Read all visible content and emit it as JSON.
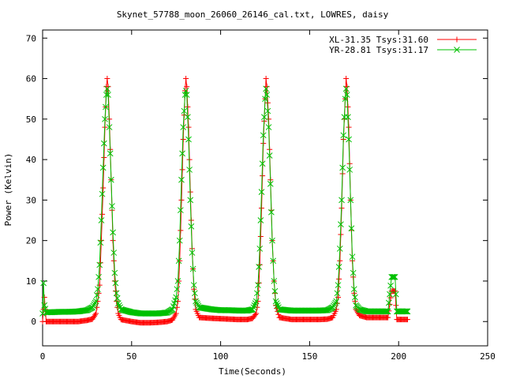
{
  "chart_data": {
    "type": "scatter",
    "title": "Skynet_57788_moon_26060_26146_cal.txt, LOWRES, daisy",
    "xlabel": "Time(Seconds)",
    "ylabel": "Power (Kelvin)",
    "xlim": [
      0,
      250
    ],
    "ylim": [
      -6,
      72
    ],
    "x_ticks": [
      "0",
      "50",
      "100",
      "150",
      "200",
      "250"
    ],
    "y_ticks": [
      "0",
      "10",
      "20",
      "30",
      "40",
      "50",
      "60",
      "70"
    ],
    "grid": false,
    "legend_position": "top-right",
    "series": [
      {
        "name": "XL-31.35 Tsys:31.60",
        "color": "#ff0000",
        "marker": "plus",
        "points": [
          [
            0,
            0
          ],
          [
            1,
            6
          ],
          [
            2,
            0
          ],
          [
            5,
            0
          ],
          [
            10,
            0
          ],
          [
            15,
            0
          ],
          [
            20,
            0
          ],
          [
            25,
            0.3
          ],
          [
            28,
            0.6
          ],
          [
            30,
            2
          ],
          [
            31,
            5
          ],
          [
            32,
            9
          ],
          [
            33,
            20
          ],
          [
            34,
            33
          ],
          [
            35,
            48
          ],
          [
            35.8,
            58
          ],
          [
            36.3,
            60
          ],
          [
            36.8,
            58
          ],
          [
            37.5,
            50
          ],
          [
            38.5,
            35
          ],
          [
            39.5,
            20
          ],
          [
            40.5,
            10
          ],
          [
            41.5,
            5
          ],
          [
            42.5,
            2
          ],
          [
            44,
            0.5
          ],
          [
            50,
            0
          ],
          [
            55,
            -0.3
          ],
          [
            60,
            -0.3
          ],
          [
            65,
            -0.2
          ],
          [
            70,
            0
          ],
          [
            73,
            0.4
          ],
          [
            75,
            2
          ],
          [
            76,
            5
          ],
          [
            77,
            15
          ],
          [
            78,
            30
          ],
          [
            79,
            45
          ],
          [
            80,
            57
          ],
          [
            80.5,
            60
          ],
          [
            81,
            58
          ],
          [
            82,
            48
          ],
          [
            83,
            32
          ],
          [
            84,
            18
          ],
          [
            85,
            8
          ],
          [
            86,
            3
          ],
          [
            88,
            1
          ],
          [
            95,
            0.8
          ],
          [
            100,
            0.7
          ],
          [
            105,
            0.6
          ],
          [
            110,
            0.5
          ],
          [
            115,
            0.5
          ],
          [
            118,
            0.8
          ],
          [
            120,
            2
          ],
          [
            121,
            5
          ],
          [
            122,
            14
          ],
          [
            123,
            28
          ],
          [
            124,
            44
          ],
          [
            125,
            55
          ],
          [
            125.5,
            60
          ],
          [
            126,
            58
          ],
          [
            127,
            50
          ],
          [
            128,
            35
          ],
          [
            129,
            20
          ],
          [
            130,
            10
          ],
          [
            131,
            4
          ],
          [
            133,
            1
          ],
          [
            140,
            0.5
          ],
          [
            145,
            0.5
          ],
          [
            150,
            0.5
          ],
          [
            155,
            0.5
          ],
          [
            160,
            0.6
          ],
          [
            163,
            1
          ],
          [
            165,
            3
          ],
          [
            166,
            6
          ],
          [
            167,
            15
          ],
          [
            168,
            28
          ],
          [
            169,
            45
          ],
          [
            170,
            55
          ],
          [
            170.5,
            60
          ],
          [
            171,
            58
          ],
          [
            172,
            48
          ],
          [
            173,
            30
          ],
          [
            174,
            15
          ],
          [
            175,
            7
          ],
          [
            176,
            3
          ],
          [
            178,
            1.5
          ],
          [
            182,
            1
          ],
          [
            188,
            1
          ],
          [
            194,
            1
          ],
          [
            196,
            7.5
          ],
          [
            197,
            7.5
          ],
          [
            198,
            7.5
          ],
          [
            199,
            0.5
          ],
          [
            202,
            0.5
          ],
          [
            205,
            0.5
          ]
        ]
      },
      {
        "name": "YR-28.81 Tsys:31.17",
        "color": "#00c000",
        "marker": "cross",
        "points": [
          [
            0,
            2
          ],
          [
            0.5,
            9.5
          ],
          [
            1,
            4
          ],
          [
            2,
            2.3
          ],
          [
            5,
            2.3
          ],
          [
            10,
            2.4
          ],
          [
            15,
            2.4
          ],
          [
            20,
            2.5
          ],
          [
            25,
            2.8
          ],
          [
            28,
            3.5
          ],
          [
            30,
            5
          ],
          [
            31,
            8
          ],
          [
            32,
            14
          ],
          [
            33,
            25
          ],
          [
            34,
            38
          ],
          [
            35,
            50
          ],
          [
            35.8,
            56
          ],
          [
            36.3,
            57.5
          ],
          [
            36.8,
            56
          ],
          [
            37.5,
            48
          ],
          [
            38.5,
            35
          ],
          [
            39.5,
            22
          ],
          [
            40.5,
            12
          ],
          [
            41.5,
            7
          ],
          [
            42.5,
            4.5
          ],
          [
            44,
            3
          ],
          [
            50,
            2.3
          ],
          [
            55,
            2
          ],
          [
            60,
            2
          ],
          [
            65,
            2
          ],
          [
            70,
            2.2
          ],
          [
            73,
            3
          ],
          [
            75,
            6
          ],
          [
            76,
            10
          ],
          [
            77,
            20
          ],
          [
            78,
            35
          ],
          [
            79,
            48
          ],
          [
            80,
            56
          ],
          [
            80.5,
            57
          ],
          [
            81,
            56
          ],
          [
            82,
            45
          ],
          [
            83,
            30
          ],
          [
            84,
            17
          ],
          [
            85,
            9
          ],
          [
            86,
            5
          ],
          [
            88,
            3.5
          ],
          [
            95,
            3
          ],
          [
            100,
            2.8
          ],
          [
            105,
            2.8
          ],
          [
            110,
            2.7
          ],
          [
            115,
            2.7
          ],
          [
            118,
            3
          ],
          [
            120,
            5
          ],
          [
            121,
            9
          ],
          [
            122,
            18
          ],
          [
            123,
            32
          ],
          [
            124,
            46
          ],
          [
            125,
            55
          ],
          [
            125.5,
            57.5
          ],
          [
            126,
            56
          ],
          [
            127,
            48
          ],
          [
            128,
            34
          ],
          [
            129,
            20
          ],
          [
            130,
            10
          ],
          [
            131,
            5
          ],
          [
            133,
            3
          ],
          [
            140,
            2.7
          ],
          [
            145,
            2.7
          ],
          [
            150,
            2.7
          ],
          [
            155,
            2.7
          ],
          [
            160,
            2.8
          ],
          [
            163,
            3.5
          ],
          [
            165,
            5
          ],
          [
            166,
            9
          ],
          [
            167,
            18
          ],
          [
            168,
            30
          ],
          [
            169,
            46
          ],
          [
            170,
            55
          ],
          [
            170.5,
            57.5
          ],
          [
            171,
            56
          ],
          [
            172,
            45
          ],
          [
            173,
            30
          ],
          [
            174,
            16
          ],
          [
            175,
            8
          ],
          [
            176,
            4
          ],
          [
            178,
            3
          ],
          [
            182,
            2.5
          ],
          [
            188,
            2.5
          ],
          [
            194,
            2.5
          ],
          [
            196,
            11
          ],
          [
            197,
            11
          ],
          [
            198,
            11
          ],
          [
            199,
            2.5
          ],
          [
            202,
            2.5
          ],
          [
            205,
            2.5
          ]
        ]
      }
    ]
  }
}
